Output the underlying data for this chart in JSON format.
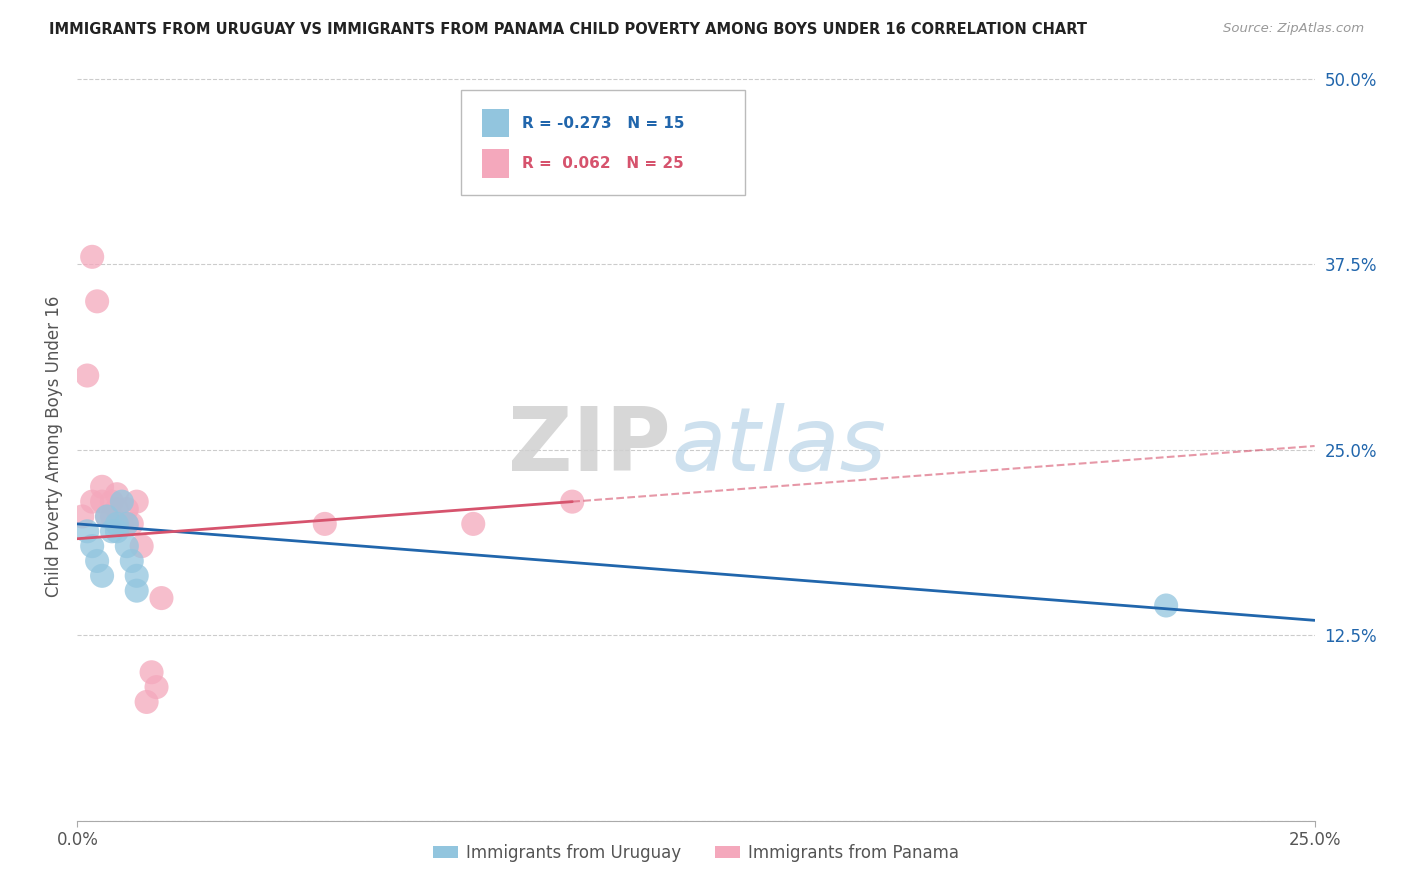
{
  "title": "IMMIGRANTS FROM URUGUAY VS IMMIGRANTS FROM PANAMA CHILD POVERTY AMONG BOYS UNDER 16 CORRELATION CHART",
  "source": "Source: ZipAtlas.com",
  "ylabel": "Child Poverty Among Boys Under 16",
  "xlim": [
    0.0,
    0.25
  ],
  "ylim": [
    0.0,
    0.5
  ],
  "color_blue": "#92c5de",
  "color_pink": "#f4a8bc",
  "color_blue_line": "#2166ac",
  "color_pink_line": "#d6536d",
  "color_pink_dash": "#f4a8bc",
  "watermark_zip": "ZIP",
  "watermark_atlas": "atlas",
  "uruguay_x": [
    0.002,
    0.003,
    0.004,
    0.005,
    0.006,
    0.007,
    0.008,
    0.008,
    0.009,
    0.01,
    0.01,
    0.011,
    0.012,
    0.012,
    0.22
  ],
  "uruguay_y": [
    0.195,
    0.185,
    0.175,
    0.165,
    0.205,
    0.195,
    0.195,
    0.2,
    0.215,
    0.185,
    0.2,
    0.175,
    0.165,
    0.155,
    0.145
  ],
  "panama_x": [
    0.001,
    0.002,
    0.003,
    0.003,
    0.004,
    0.005,
    0.005,
    0.006,
    0.007,
    0.007,
    0.008,
    0.008,
    0.009,
    0.01,
    0.01,
    0.011,
    0.012,
    0.013,
    0.014,
    0.015,
    0.016,
    0.017,
    0.05,
    0.08,
    0.1
  ],
  "panama_y": [
    0.205,
    0.3,
    0.38,
    0.215,
    0.35,
    0.225,
    0.215,
    0.205,
    0.215,
    0.205,
    0.21,
    0.22,
    0.2,
    0.21,
    0.2,
    0.2,
    0.215,
    0.185,
    0.08,
    0.1,
    0.09,
    0.15,
    0.2,
    0.2,
    0.215
  ],
  "trend_blue_x0": 0.0,
  "trend_blue_y0": 0.2,
  "trend_blue_x1": 0.25,
  "trend_blue_y1": 0.135,
  "trend_pink_solid_x0": 0.0,
  "trend_pink_solid_y0": 0.19,
  "trend_pink_solid_x1": 0.1,
  "trend_pink_solid_y1": 0.215,
  "trend_pink_dash_x0": 0.1,
  "trend_pink_dash_y0": 0.215,
  "trend_pink_dash_x1": 0.25,
  "trend_pink_dash_y1": 0.255
}
